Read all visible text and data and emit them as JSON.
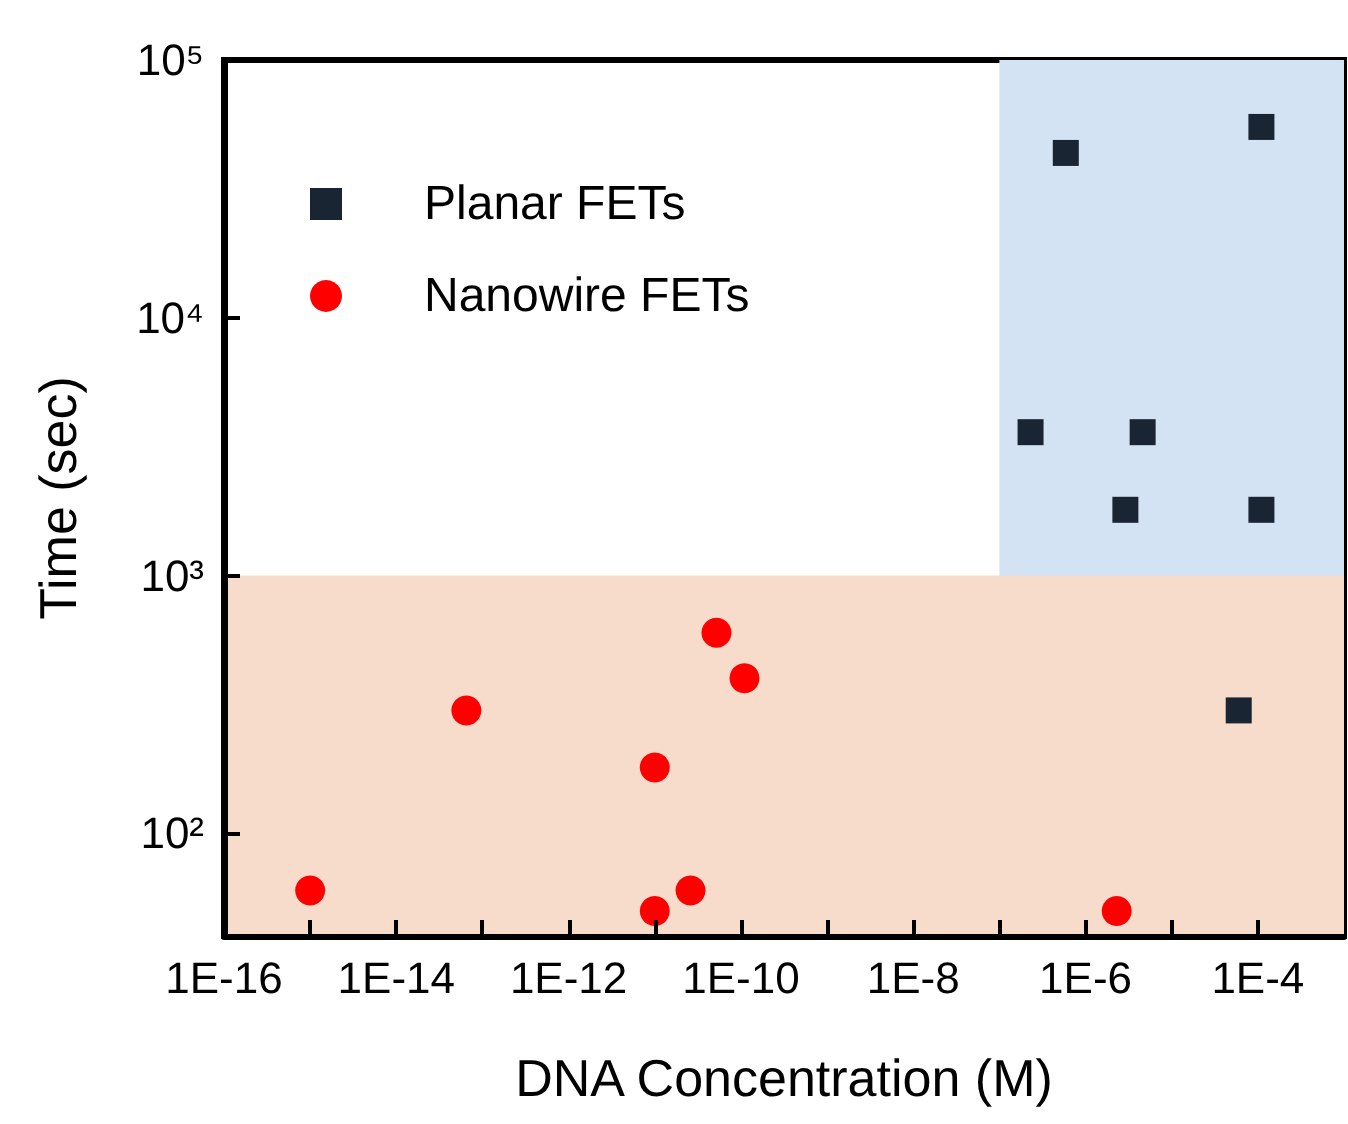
{
  "chart_data": {
    "type": "scatter",
    "xlabel": "DNA Concentration (M)",
    "ylabel": "Time (sec)",
    "log": "xy",
    "grid": false,
    "legend": "top left",
    "xlim": [
      1e-16,
      0.001
    ],
    "ylim": [
      40,
      100000
    ],
    "xticks": [
      {
        "value": 1e-16,
        "label": "1E-16"
      },
      {
        "value": 1e-15,
        "label": null
      },
      {
        "value": 1e-14,
        "label": "1E-14"
      },
      {
        "value": 1e-13,
        "label": null
      },
      {
        "value": 1e-12,
        "label": "1E-12"
      },
      {
        "value": 1e-11,
        "label": null
      },
      {
        "value": 1e-10,
        "label": "1E-10"
      },
      {
        "value": 1e-09,
        "label": null
      },
      {
        "value": 1e-08,
        "label": "1E-8"
      },
      {
        "value": 1e-07,
        "label": null
      },
      {
        "value": 1e-06,
        "label": "1E-6"
      },
      {
        "value": 1e-05,
        "label": null
      },
      {
        "value": 0.0001,
        "label": "1E-4"
      }
    ],
    "yticks": [
      {
        "value": 100,
        "label": "10²"
      },
      {
        "value": 1000,
        "label": "10³"
      },
      {
        "value": 10000,
        "label": "10⁴"
      },
      {
        "value": 100000,
        "label": "10⁵"
      }
    ],
    "bands": [
      {
        "axis": "x",
        "from": 1e-07,
        "to": 0.001,
        "color": "#d3e3f3"
      },
      {
        "axis": "y",
        "from": 40,
        "to": 1000,
        "color": "#f8dccb"
      }
    ],
    "series": [
      {
        "name": "Planar FETs",
        "color": "#1a2533",
        "marker": "square",
        "x": [
          5.9e-07,
          0.00011,
          2.3e-07,
          4.6e-06,
          2.9e-06,
          0.00011,
          6e-05
        ],
        "values": [
          43600,
          55000,
          3600,
          3600,
          1800,
          1800,
          300
        ]
      },
      {
        "name": "Nanowire FETs",
        "color": "#ff0000",
        "marker": "circle",
        "x": [
          1e-15,
          6.5e-14,
          1e-11,
          1e-11,
          2.6e-11,
          5.2e-11,
          1.1e-10,
          2.3e-06
        ],
        "values": [
          60,
          300,
          180,
          50,
          60,
          600,
          400,
          50
        ]
      }
    ]
  }
}
